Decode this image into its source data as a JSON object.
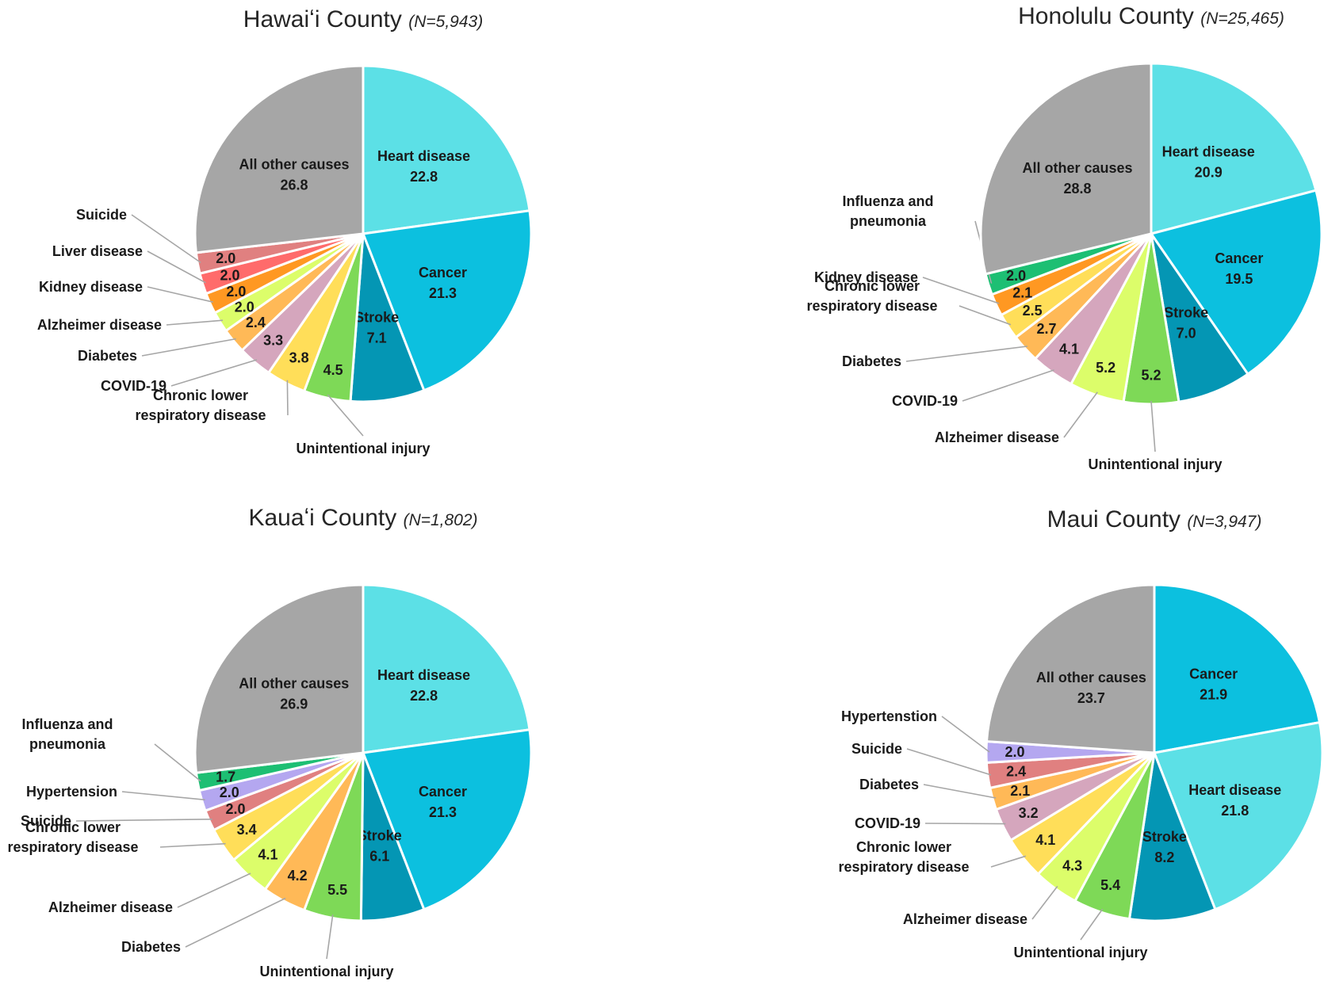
{
  "chart_data": [
    {
      "type": "pie",
      "title": "Hawaiʻi County",
      "subtitle": "(N=5,943)",
      "slices": [
        {
          "label": "Heart disease",
          "value": 22.8,
          "color": "#5ce0e6",
          "label_mode": "inside"
        },
        {
          "label": "Cancer",
          "value": 21.3,
          "color": "#0cc0df",
          "label_mode": "inside"
        },
        {
          "label": "Stroke",
          "value": 7.1,
          "color": "#0496b4",
          "label_mode": "inside"
        },
        {
          "label": "Unintentional injury",
          "value": 4.5,
          "color": "#7ed957",
          "label_mode": "outside"
        },
        {
          "label": "Chronic lower respiratory disease",
          "value": 3.8,
          "color": "#ffde59",
          "label_mode": "outside"
        },
        {
          "label": "COVID-19",
          "value": 3.3,
          "color": "#d5a6bd",
          "label_mode": "outside"
        },
        {
          "label": "Diabetes",
          "value": 2.4,
          "color": "#ffb957",
          "label_mode": "outside"
        },
        {
          "label": "Alzheimer disease",
          "value": 2.0,
          "color": "#dcfd6a",
          "label_mode": "outside"
        },
        {
          "label": "Kidney disease",
          "value": 2.0,
          "color": "#ff9822",
          "label_mode": "outside"
        },
        {
          "label": "Liver disease",
          "value": 2.0,
          "color": "#ff6b6b",
          "label_mode": "outside"
        },
        {
          "label": "Suicide",
          "value": 2.0,
          "color": "#e08080",
          "label_mode": "outside"
        },
        {
          "label": "All other causes",
          "value": 26.8,
          "color": "#a6a6a6",
          "label_mode": "inside"
        }
      ]
    },
    {
      "type": "pie",
      "title": "Honolulu County",
      "subtitle": "(N=25,465)",
      "slices": [
        {
          "label": "Heart disease",
          "value": 20.9,
          "color": "#5ce0e6",
          "label_mode": "inside"
        },
        {
          "label": "Cancer",
          "value": 19.5,
          "color": "#0cc0df",
          "label_mode": "inside"
        },
        {
          "label": "Stroke",
          "value": 7.0,
          "color": "#0496b4",
          "label_mode": "inside"
        },
        {
          "label": "Unintentional injury",
          "value": 5.2,
          "color": "#7ed957",
          "label_mode": "outside"
        },
        {
          "label": "Alzheimer disease",
          "value": 5.2,
          "color": "#dcfd6a",
          "label_mode": "outside"
        },
        {
          "label": "COVID-19",
          "value": 4.1,
          "color": "#d5a6bd",
          "label_mode": "outside"
        },
        {
          "label": "Diabetes",
          "value": 2.7,
          "color": "#ffb957",
          "label_mode": "outside"
        },
        {
          "label": "Chronic lower respiratory disease",
          "value": 2.5,
          "color": "#ffde59",
          "label_mode": "outside"
        },
        {
          "label": "Kidney disease",
          "value": 2.1,
          "color": "#ff9822",
          "label_mode": "outside"
        },
        {
          "label": "Influenza and pneumonia",
          "value": 2.0,
          "color": "#1dbf73",
          "label_mode": "outside"
        },
        {
          "label": "All other causes",
          "value": 28.8,
          "color": "#a6a6a6",
          "label_mode": "inside"
        }
      ]
    },
    {
      "type": "pie",
      "title": "Kauaʻi County",
      "subtitle": "(N=1,802)",
      "slices": [
        {
          "label": "Heart disease",
          "value": 22.8,
          "color": "#5ce0e6",
          "label_mode": "inside"
        },
        {
          "label": "Cancer",
          "value": 21.3,
          "color": "#0cc0df",
          "label_mode": "inside"
        },
        {
          "label": "Stroke",
          "value": 6.1,
          "color": "#0496b4",
          "label_mode": "inside"
        },
        {
          "label": "Unintentional injury",
          "value": 5.5,
          "color": "#7ed957",
          "label_mode": "outside"
        },
        {
          "label": "Diabetes",
          "value": 4.2,
          "color": "#ffb957",
          "label_mode": "outside"
        },
        {
          "label": "Alzheimer disease",
          "value": 4.1,
          "color": "#dcfd6a",
          "label_mode": "outside"
        },
        {
          "label": "Chronic lower respiratory disease",
          "value": 3.4,
          "color": "#ffde59",
          "label_mode": "outside"
        },
        {
          "label": "Suicide",
          "value": 2.0,
          "color": "#e08080",
          "label_mode": "outside"
        },
        {
          "label": "Hypertension",
          "value": 2.0,
          "color": "#b4a7f0",
          "label_mode": "outside"
        },
        {
          "label": "Influenza and pneumonia",
          "value": 1.7,
          "color": "#1dbf73",
          "label_mode": "outside"
        },
        {
          "label": "All other causes",
          "value": 26.9,
          "color": "#a6a6a6",
          "label_mode": "inside"
        }
      ]
    },
    {
      "type": "pie",
      "title": "Maui County",
      "subtitle": "(N=3,947)",
      "slices": [
        {
          "label": "Cancer",
          "value": 21.9,
          "color": "#0cc0df",
          "label_mode": "inside"
        },
        {
          "label": "Heart disease",
          "value": 21.8,
          "color": "#5ce0e6",
          "label_mode": "inside"
        },
        {
          "label": "Stroke",
          "value": 8.2,
          "color": "#0496b4",
          "label_mode": "inside"
        },
        {
          "label": "Unintentional injury",
          "value": 5.4,
          "color": "#7ed957",
          "label_mode": "outside"
        },
        {
          "label": "Alzheimer disease",
          "value": 4.3,
          "color": "#dcfd6a",
          "label_mode": "outside"
        },
        {
          "label": "Chronic lower respiratory disease",
          "value": 4.1,
          "color": "#ffde59",
          "label_mode": "outside"
        },
        {
          "label": "COVID-19",
          "value": 3.2,
          "color": "#d5a6bd",
          "label_mode": "outside"
        },
        {
          "label": "Diabetes",
          "value": 2.1,
          "color": "#ffb957",
          "label_mode": "outside"
        },
        {
          "label": "Suicide",
          "value": 2.4,
          "color": "#e08080",
          "label_mode": "outside"
        },
        {
          "label": "Hypertenstion",
          "value": 2.0,
          "color": "#b4a7f0",
          "label_mode": "outside"
        },
        {
          "label": "All other causes",
          "value": 23.7,
          "color": "#a6a6a6",
          "label_mode": "inside"
        }
      ]
    }
  ]
}
